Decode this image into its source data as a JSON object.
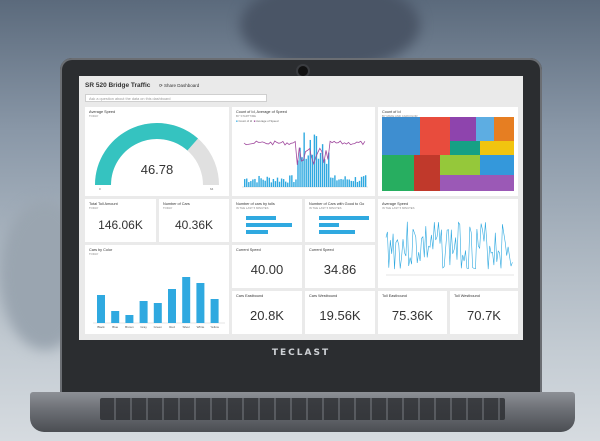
{
  "dashboard": {
    "title": "SR 520 Bridge Traffic",
    "share_label": "Share Dashboard",
    "qa_placeholder": "Ask a question about the data on this dashboard"
  },
  "brand": "TECLAST",
  "tiles": {
    "avg_speed_gauge": {
      "title": "Average Speed",
      "subtitle": "TODAY",
      "value": "46.78",
      "min": "0",
      "max": "64",
      "fill": 0.73
    },
    "count_line": {
      "title": "Count of Id, Average of Speed",
      "subtitle": "BY STARTTIME",
      "legend": [
        "Count of Id",
        "Average of Speed"
      ]
    },
    "treemap": {
      "title": "Count of Id",
      "subtitle": "BY MAKE AND CARCOLOR"
    },
    "total_toll": {
      "title": "Total Toll Amount",
      "subtitle": "TODAY",
      "value": "146.06K"
    },
    "num_cars": {
      "title": "Number of Cars",
      "subtitle": "TODAY",
      "value": "40.36K"
    },
    "cars_tolls": {
      "title": "Number of cars by tolls",
      "subtitle": "IN THE LAST 5 MINUTES"
    },
    "cars_good_to_go": {
      "title": "Number of Cars with Good to Go",
      "subtitle": "IN THE LAST 5 MINUTES"
    },
    "avg_speed_line": {
      "title": "Average Speed",
      "subtitle": "IN THE LAST 5 MINUTES"
    },
    "cars_by_color": {
      "title": "Cars by Color",
      "subtitle": "TODAY",
      "categories": [
        "Black",
        "Blue",
        "Brown",
        "Gray",
        "Green",
        "Red",
        "Silver",
        "White",
        "Yellow"
      ]
    },
    "current_speed_1": {
      "title": "Current Speed",
      "value": "40.00"
    },
    "current_speed_2": {
      "title": "Current Speed",
      "value": "34.86"
    },
    "cars_eastbound": {
      "title": "Cars Eastbound",
      "value": "20.8K"
    },
    "cars_westbound": {
      "title": "Cars Westbound",
      "value": "19.56K"
    },
    "toll_eastbound": {
      "title": "Toll Eastbound",
      "value": "75.36K"
    },
    "toll_westbound": {
      "title": "Toll Westbound",
      "value": "70.7K"
    }
  },
  "colors": {
    "accent": "#2fa9e0",
    "gauge": "#35c3c0",
    "purple": "#a04a9e"
  }
}
